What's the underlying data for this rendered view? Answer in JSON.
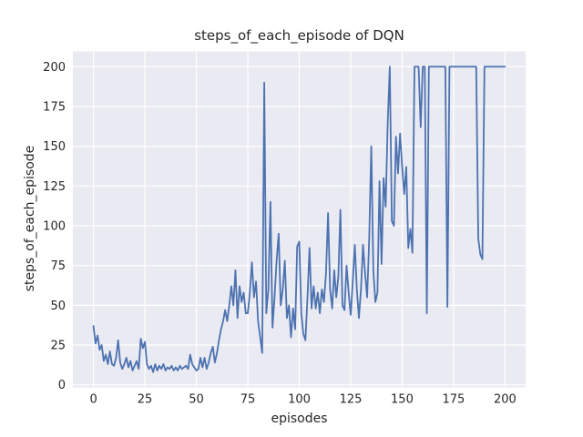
{
  "chart_data": {
    "type": "line",
    "title": "steps_of_each_episode of DQN",
    "xlabel": "episodes",
    "ylabel": "steps_of_each_episode",
    "legend": false,
    "grid": true,
    "style": "seaborn-darkgrid",
    "xticks": [
      0,
      25,
      50,
      75,
      100,
      125,
      150,
      175,
      200
    ],
    "yticks": [
      0,
      25,
      50,
      75,
      100,
      125,
      150,
      175,
      200
    ],
    "xlim": [
      -10,
      210
    ],
    "ylim": [
      -1.6,
      209.6
    ],
    "x_description": "episode index 0..200, one value per episode",
    "values": [
      37,
      26,
      31,
      22,
      25,
      15,
      19,
      13,
      21,
      13,
      12,
      17,
      28,
      14,
      10,
      13,
      17,
      11,
      15,
      9,
      12,
      15,
      10,
      29,
      23,
      27,
      13,
      10,
      12,
      8,
      13,
      9,
      12,
      10,
      13,
      9,
      11,
      10,
      12,
      9,
      11,
      9,
      12,
      10,
      11,
      12,
      10,
      19,
      13,
      11,
      9,
      10,
      17,
      11,
      17,
      10,
      14,
      20,
      24,
      14,
      20,
      28,
      35,
      40,
      47,
      40,
      50,
      62,
      50,
      72,
      42,
      62,
      52,
      58,
      45,
      45,
      58,
      77,
      55,
      65,
      40,
      30,
      20,
      190,
      45,
      60,
      115,
      36,
      55,
      78,
      95,
      50,
      60,
      78,
      42,
      50,
      30,
      48,
      35,
      87,
      90,
      45,
      32,
      28,
      55,
      86,
      48,
      62,
      48,
      58,
      45,
      60,
      52,
      70,
      108,
      60,
      48,
      72,
      55,
      68,
      110,
      50,
      47,
      75,
      58,
      44,
      65,
      88,
      60,
      42,
      60,
      88,
      70,
      55,
      92,
      150,
      72,
      52,
      58,
      128,
      76,
      130,
      112,
      165,
      200,
      103,
      100,
      156,
      133,
      158,
      137,
      120,
      137,
      86,
      98,
      83,
      200,
      200,
      200,
      162,
      200,
      200,
      45,
      200,
      200,
      200,
      200,
      200,
      200,
      200,
      200,
      200,
      49,
      200,
      200,
      200,
      200,
      200,
      200,
      200,
      200,
      200,
      200,
      200,
      200,
      200,
      200,
      92,
      82,
      79,
      200,
      200,
      200,
      200,
      200,
      200,
      200,
      200,
      200,
      200,
      200
    ],
    "colors": {
      "line": "#4C72B0",
      "axes_background": "#EAEAF2",
      "grid": "#FFFFFF",
      "text": "#262626",
      "figure_background": "#FFFFFF"
    }
  }
}
